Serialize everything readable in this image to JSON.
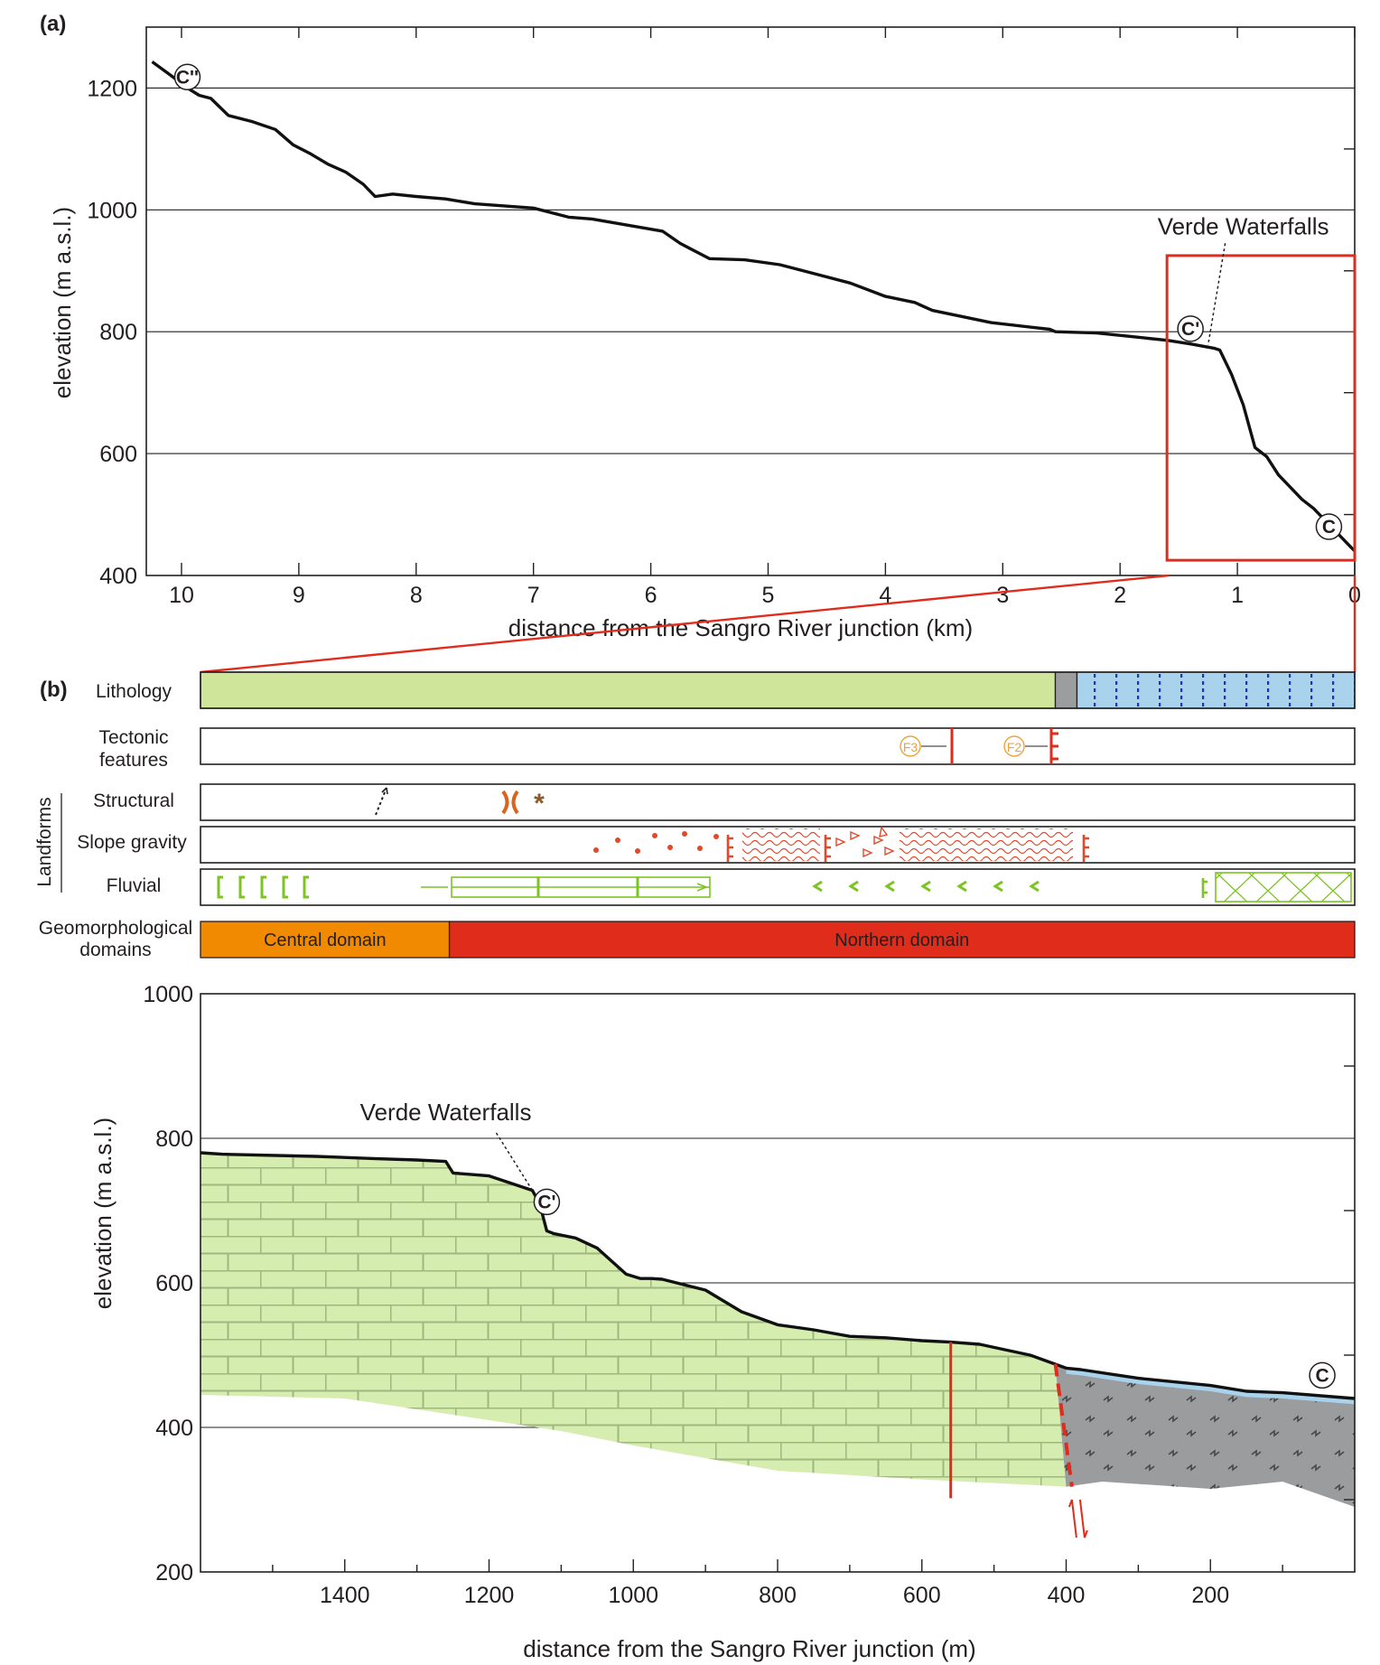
{
  "figure": {
    "panel_a_label": "(a)",
    "panel_b_label": "(b)"
  },
  "chart_data": [
    {
      "type": "line",
      "panel": "a",
      "title": "",
      "xlabel": "distance from the Sangro River junction (km)",
      "ylabel": "elevation (m a.s.l.)",
      "xlim": [
        10.3,
        0
      ],
      "ylim": [
        400,
        1300
      ],
      "xticks": [
        10,
        9,
        8,
        7,
        6,
        5,
        4,
        3,
        2,
        1,
        0
      ],
      "yticks": [
        400,
        600,
        800,
        1000,
        1200
      ],
      "grid": true,
      "series": [
        {
          "name": "longitudinal profile",
          "x": [
            10.25,
            10.1,
            9.95,
            9.85,
            9.75,
            9.6,
            9.4,
            9.2,
            9.05,
            8.9,
            8.75,
            8.6,
            8.45,
            8.35,
            8.2,
            8.0,
            7.75,
            7.5,
            7.0,
            6.7,
            6.5,
            6.2,
            5.9,
            5.75,
            5.6,
            5.5,
            5.2,
            4.9,
            4.6,
            4.3,
            4.0,
            3.75,
            3.6,
            3.1,
            2.6,
            2.55,
            2.2,
            1.9,
            1.6,
            1.4,
            1.2,
            1.15,
            1.05,
            0.95,
            0.85,
            0.75,
            0.65,
            0.55,
            0.45,
            0.35,
            0.25,
            0.15,
            0.05,
            0.0
          ],
          "y": [
            1243,
            1222,
            1200,
            1188,
            1183,
            1155,
            1145,
            1132,
            1107,
            1092,
            1075,
            1062,
            1042,
            1022,
            1026,
            1022,
            1018,
            1010,
            1003,
            988,
            985,
            975,
            965,
            945,
            930,
            920,
            918,
            910,
            895,
            880,
            858,
            848,
            835,
            815,
            804,
            800,
            798,
            792,
            786,
            780,
            773,
            770,
            730,
            680,
            610,
            595,
            565,
            545,
            525,
            510,
            490,
            470,
            450,
            440
          ]
        }
      ],
      "points": [
        {
          "label": "C''",
          "x": 9.95,
          "y": 1218
        },
        {
          "label": "C'",
          "x": 1.4,
          "y": 805
        },
        {
          "label": "C",
          "x": 0.22,
          "y": 480
        }
      ],
      "annotations": [
        {
          "text": "Verde Waterfalls",
          "x": 0.95,
          "y": 960
        }
      ],
      "inset_box": {
        "xlim": [
          1.6,
          0
        ],
        "ylim": [
          425,
          925
        ]
      }
    },
    {
      "type": "line",
      "panel": "b",
      "title": "",
      "xlabel": "distance from the Sangro River junction (m)",
      "ylabel": "elevation (m a.s.l.)",
      "xlim": [
        1600,
        0
      ],
      "ylim": [
        200,
        1000
      ],
      "xticks": [
        1400,
        1200,
        1000,
        800,
        600,
        400,
        200
      ],
      "yticks": [
        200,
        400,
        600,
        800,
        1000
      ],
      "grid": true,
      "series": [
        {
          "name": "ground surface",
          "x": [
            1600,
            1570,
            1440,
            1360,
            1300,
            1260,
            1250,
            1200,
            1140,
            1130,
            1120,
            1110,
            1080,
            1050,
            1010,
            990,
            975,
            960,
            900,
            850,
            800,
            750,
            700,
            650,
            600,
            560,
            520,
            450,
            400,
            380,
            300,
            200,
            150,
            100,
            0
          ],
          "y": [
            780,
            778,
            775,
            772,
            770,
            768,
            752,
            748,
            728,
            710,
            672,
            668,
            662,
            648,
            612,
            606,
            606,
            605,
            590,
            560,
            542,
            535,
            526,
            524,
            520,
            518,
            515,
            500,
            482,
            480,
            468,
            458,
            450,
            448,
            440
          ]
        },
        {
          "name": "limestone base",
          "x": [
            1600,
            1400,
            1300,
            1100,
            1000,
            800,
            600,
            400
          ],
          "y": [
            445,
            440,
            425,
            395,
            375,
            340,
            328,
            318
          ]
        },
        {
          "name": "grey unit base",
          "x": [
            400,
            350,
            200,
            100,
            0
          ],
          "y": [
            318,
            325,
            315,
            325,
            290
          ]
        }
      ],
      "points": [
        {
          "label": "C'",
          "x": 1120,
          "y": 712
        },
        {
          "label": "C",
          "x": 45,
          "y": 472
        }
      ],
      "annotations": [
        {
          "text": "Verde Waterfalls",
          "x": 1260,
          "y": 825
        }
      ],
      "faults": [
        {
          "kind": "solid",
          "x": 560
        },
        {
          "kind": "dashed",
          "x_top": 415,
          "x_bottom": 392
        }
      ]
    },
    {
      "type": "table",
      "panel": "b-strips",
      "xlim": [
        1600,
        0
      ],
      "rows": [
        {
          "label": "Lithology",
          "segments": [
            {
              "from": 1600,
              "to": 415,
              "fill": "#cfe69a",
              "pattern": "none"
            },
            {
              "from": 415,
              "to": 385,
              "fill": "#9b9d9f",
              "pattern": "none"
            },
            {
              "from": 385,
              "to": 0,
              "fill": "#a9d2ec",
              "pattern": "dotted-lines"
            }
          ]
        },
        {
          "label_lines": [
            "Tectonic",
            "features"
          ],
          "markers": [
            {
              "label": "F3",
              "x": 560,
              "kind": "solid-fault"
            },
            {
              "label": "F2",
              "x": 415,
              "kind": "fault-ticks"
            }
          ]
        },
        {
          "label": "Structural",
          "symbols": [
            "ridge-arrow",
            "col-saddle",
            "asterisk"
          ]
        },
        {
          "label": "Slope gravity",
          "symbols": [
            "dots",
            "scarp",
            "wavy-landslide",
            "triangles",
            "wavy-landslide",
            "scarp"
          ]
        },
        {
          "label": "Fluvial",
          "symbols": [
            "brackets",
            "channel-arrows",
            "chevrons",
            "scarp",
            "cross-hatch"
          ]
        }
      ],
      "group_label": "Landforms",
      "domains": {
        "label_lines": [
          "Geomorphological",
          "domains"
        ],
        "segments": [
          {
            "name": "Central domain",
            "from": 1600,
            "to": 1255,
            "fill": "#f28a00"
          },
          {
            "name": "Northern domain",
            "from": 1255,
            "to": 0,
            "fill": "#e02d1b"
          }
        ]
      }
    }
  ],
  "colors": {
    "profile_line": "#111111",
    "highlight_box": "#e02d1b",
    "limestone": "#d6edb0",
    "grey_unit": "#9a9c9e",
    "blue_unit": "#a9d2ec",
    "fault": "#e02d1b",
    "fluvial_symbol": "#7dc423",
    "gravity_symbol": "#e0492b",
    "structural_symbol": "#d8651f",
    "marker_label": "#f0a23a"
  }
}
